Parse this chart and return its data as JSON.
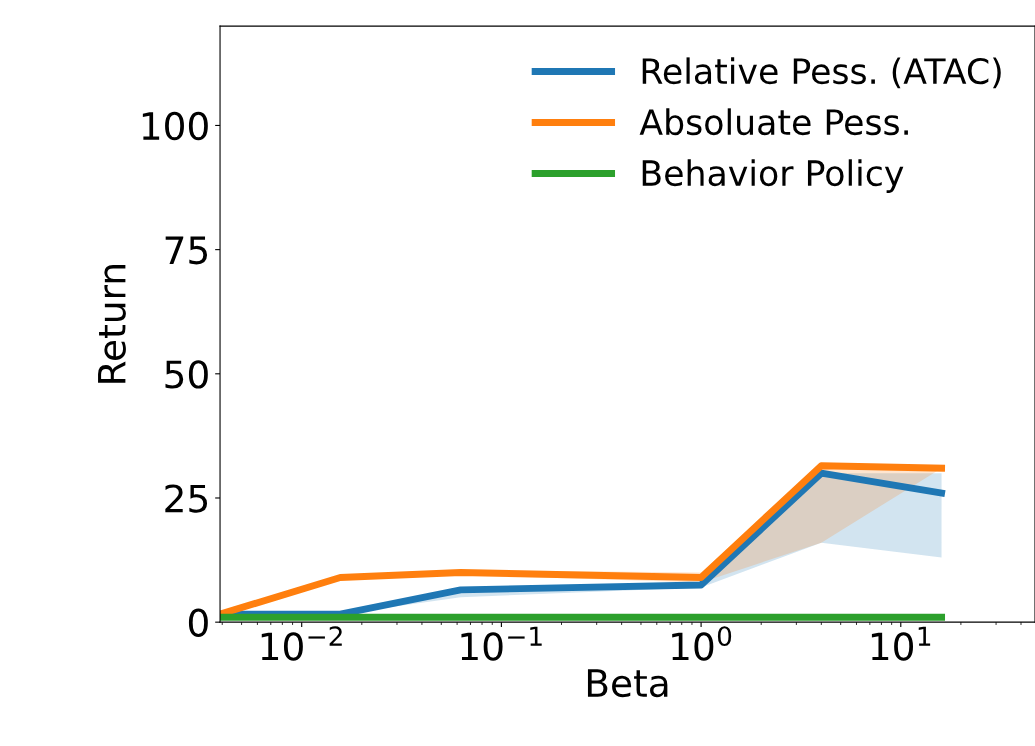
{
  "chart_data": {
    "type": "line",
    "xlabel": "Beta",
    "ylabel": "Return",
    "log": "x",
    "x": [
      0.0039,
      0.0156,
      0.0625,
      1,
      4,
      16
    ],
    "series": [
      {
        "name": "Relative Pess. (ATAC)",
        "color": "#1f77b4",
        "values": [
          1.6,
          1.6,
          6.5,
          7.5,
          30,
          26
        ],
        "lower": [
          1.6,
          1.6,
          5,
          7,
          16,
          13
        ],
        "upper": [
          1.6,
          1.6,
          7,
          8,
          30,
          30
        ]
      },
      {
        "name": "Absoluate Pess.",
        "color": "#ff7f0e",
        "values": [
          1.6,
          9,
          10,
          9,
          31.5,
          31
        ],
        "lower": [
          1.6,
          8.5,
          9.5,
          8,
          16,
          31
        ],
        "upper": [
          1.6,
          9.5,
          10.5,
          10,
          31.5,
          31.5
        ]
      },
      {
        "name": "Behavior Policy",
        "color": "#2ca02c",
        "values": [
          1,
          1,
          1,
          1,
          1,
          1
        ]
      }
    ],
    "xlim": [
      0.0039,
      47
    ],
    "ylim": [
      0,
      120
    ],
    "xticks": [
      {
        "value": 0.01,
        "label": "10$^{−2}$"
      },
      {
        "value": 0.1,
        "label": "10$^{−1}$"
      },
      {
        "value": 1,
        "label": "10$^{0}$"
      },
      {
        "value": 10,
        "label": "10$^{1}$"
      }
    ],
    "yticks": [
      0,
      25,
      50,
      75,
      100
    ],
    "legend": "top right",
    "grid": false
  }
}
